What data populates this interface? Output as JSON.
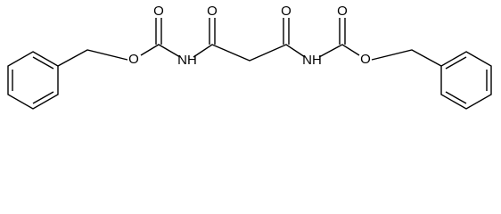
{
  "atoms": [
    {
      "label": "O"
    },
    {
      "label": "O"
    },
    {
      "label": "NH"
    },
    {
      "label": "O"
    },
    {
      "label": "O"
    },
    {
      "label": "NH"
    },
    {
      "label": "O"
    },
    {
      "label": "O"
    }
  ]
}
